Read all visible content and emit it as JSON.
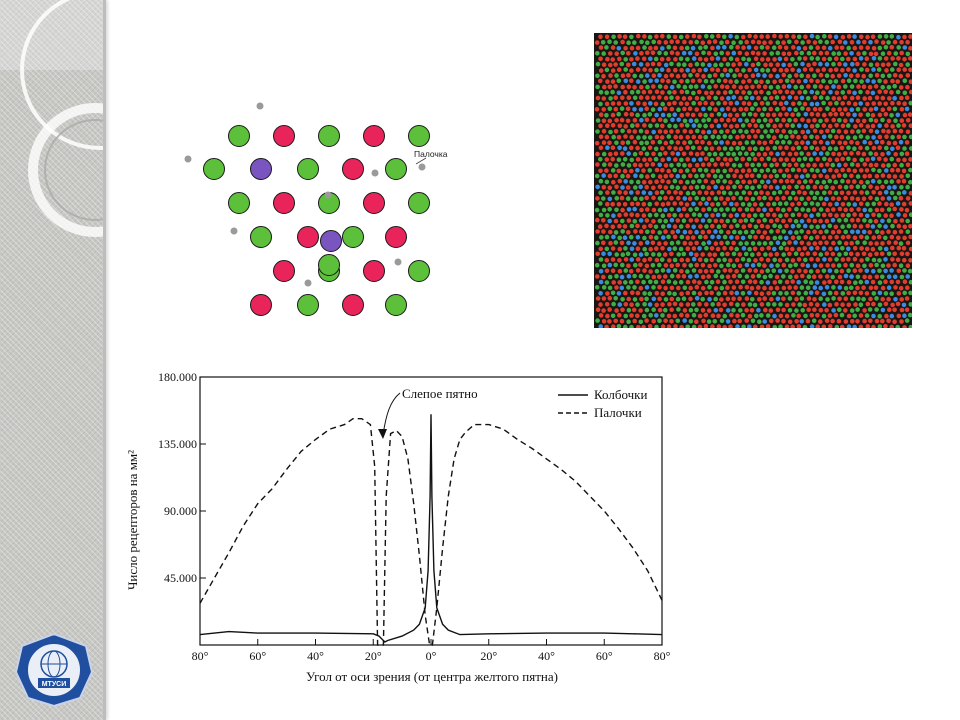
{
  "logo": {
    "badge_text": "МТУСИ",
    "ring_text": "ТЕХНИЧЕСКИЙ УНИВЕРСИТЕТ СВЯЗИ И ИНФОРМАТИКИ"
  },
  "mosaic": {
    "rod_label": "Палочка",
    "colors": {
      "red": "#e8245a",
      "green": "#5cc03a",
      "blue": "#7a55c0",
      "rod": "#9a9a9a"
    }
  },
  "retina": {
    "colors": {
      "red": "#e23c2e",
      "green": "#3fae45",
      "blue": "#3a8ce0",
      "background": "#1a1614"
    }
  },
  "chart_data": {
    "type": "line",
    "xlabel": "Угол от оси зрения (от центра желтого пятна)",
    "ylabel": "Число рецепторов на мм²",
    "x_tick_labels": [
      "80°",
      "60°",
      "40°",
      "20°",
      "0°",
      "20°",
      "40°",
      "60°",
      "80°"
    ],
    "y_tick_labels": [
      "45.000",
      "90.000",
      "135.000",
      "180.000"
    ],
    "ylim": [
      0,
      180000
    ],
    "xlim": [
      -80,
      80
    ],
    "annotation": "Слепое пятно",
    "legend": {
      "position": "top-right"
    },
    "series": [
      {
        "name": "Колбочки",
        "style": "solid",
        "points": [
          [
            -80,
            7000
          ],
          [
            -70,
            9000
          ],
          [
            -60,
            8000
          ],
          [
            -40,
            8000
          ],
          [
            -20,
            7500
          ],
          [
            -18,
            6000
          ],
          [
            -16,
            2000
          ],
          [
            -15,
            3000
          ],
          [
            -10,
            6000
          ],
          [
            -6,
            10000
          ],
          [
            -4,
            14000
          ],
          [
            -2,
            25000
          ],
          [
            -1,
            50000
          ],
          [
            -0.3,
            100000
          ],
          [
            0,
            155000
          ],
          [
            0.3,
            100000
          ],
          [
            1,
            50000
          ],
          [
            2,
            25000
          ],
          [
            4,
            14000
          ],
          [
            6,
            10000
          ],
          [
            10,
            7000
          ],
          [
            20,
            7500
          ],
          [
            40,
            8000
          ],
          [
            60,
            8000
          ],
          [
            70,
            7500
          ],
          [
            80,
            7000
          ]
        ]
      },
      {
        "name": "Палочки",
        "style": "dashed",
        "points": [
          [
            -80,
            28000
          ],
          [
            -75,
            45000
          ],
          [
            -70,
            62000
          ],
          [
            -65,
            80000
          ],
          [
            -60,
            95000
          ],
          [
            -55,
            105000
          ],
          [
            -50,
            118000
          ],
          [
            -45,
            130000
          ],
          [
            -40,
            138000
          ],
          [
            -35,
            145000
          ],
          [
            -30,
            148000
          ],
          [
            -27,
            152000
          ],
          [
            -24,
            152000
          ],
          [
            -21,
            148000
          ],
          [
            -19.5,
            120000
          ],
          [
            -18.5,
            0
          ],
          [
            -16.5,
            0
          ],
          [
            -15.5,
            100000
          ],
          [
            -14,
            142000
          ],
          [
            -12,
            144000
          ],
          [
            -10,
            140000
          ],
          [
            -8,
            125000
          ],
          [
            -6,
            95000
          ],
          [
            -4,
            60000
          ],
          [
            -2,
            20000
          ],
          [
            -0.5,
            0
          ],
          [
            0.5,
            0
          ],
          [
            2,
            25000
          ],
          [
            4,
            65000
          ],
          [
            6,
            100000
          ],
          [
            8,
            125000
          ],
          [
            10,
            138000
          ],
          [
            12,
            143000
          ],
          [
            15,
            148000
          ],
          [
            20,
            148000
          ],
          [
            25,
            145000
          ],
          [
            30,
            138000
          ],
          [
            35,
            132000
          ],
          [
            40,
            125000
          ],
          [
            45,
            118000
          ],
          [
            50,
            110000
          ],
          [
            55,
            100000
          ],
          [
            60,
            90000
          ],
          [
            65,
            78000
          ],
          [
            70,
            65000
          ],
          [
            75,
            50000
          ],
          [
            80,
            30000
          ]
        ]
      }
    ]
  }
}
